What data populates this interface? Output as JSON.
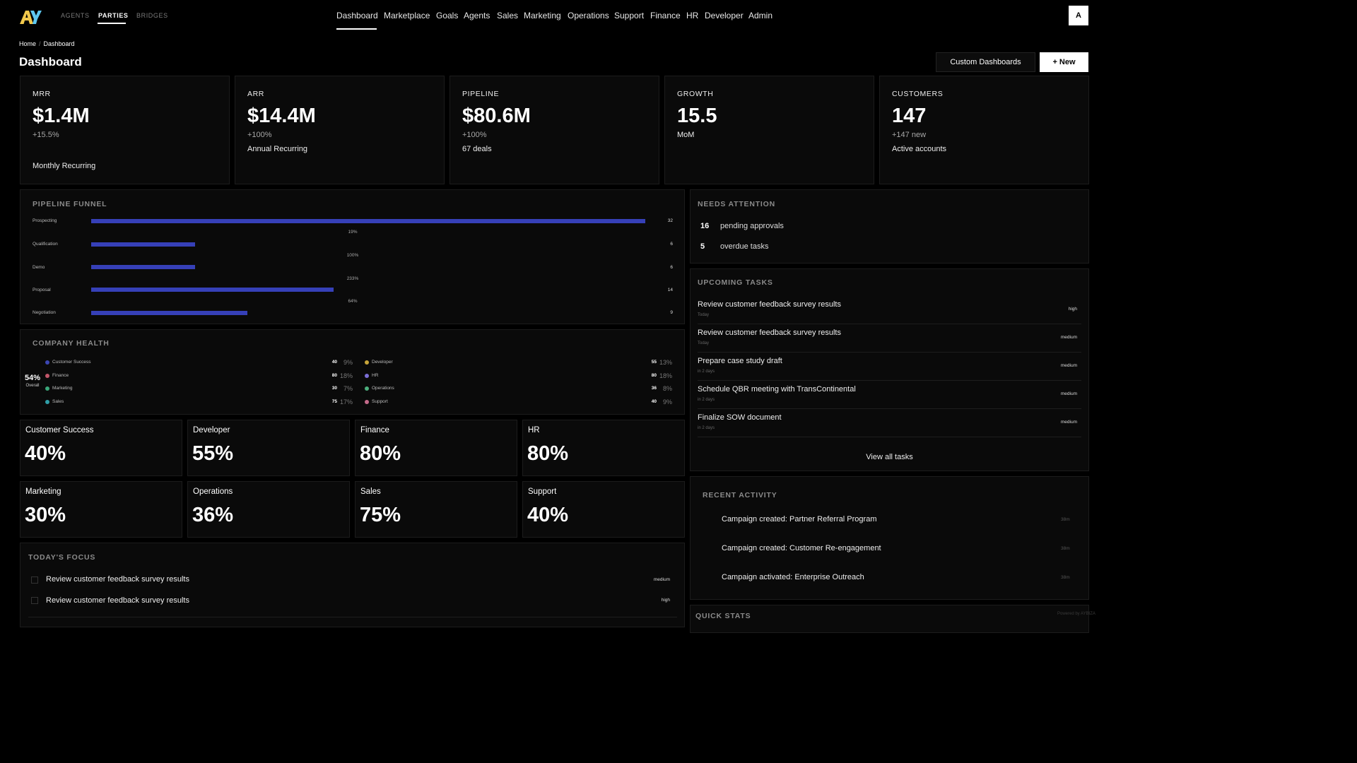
{
  "brand": {
    "logo_text": "AY",
    "accent": "#f2c94c",
    "accent2": "#5ec8f0"
  },
  "party_tabs": {
    "agents": "AGENTS",
    "parties": "PARTIES",
    "bridges": "BRIDGES"
  },
  "nav": [
    "Dashboard",
    "Marketplace",
    "Goals",
    "Agents",
    "Sales",
    "Marketing",
    "Operations",
    "Support",
    "Finance",
    "HR",
    "Developer",
    "Admin"
  ],
  "user": {
    "avatar_initial": "A"
  },
  "breadcrumb": {
    "home": "Home",
    "sep": "/",
    "current": "Dashboard"
  },
  "page": {
    "title": "Dashboard",
    "custom_dashboards": "Custom Dashboards",
    "new_button": "+ New"
  },
  "kpis": [
    {
      "label": "MRR",
      "value": "$1.4M",
      "change": "+15.5%",
      "desc": "Monthly Recurring"
    },
    {
      "label": "ARR",
      "value": "$14.4M",
      "change": "+100%",
      "desc": "Annual Recurring"
    },
    {
      "label": "PIPELINE",
      "value": "$80.6M",
      "change": "+100%",
      "desc": "67 deals"
    },
    {
      "label": "GROWTH",
      "value": "15.5",
      "change": "MoM",
      "desc": ""
    },
    {
      "label": "CUSTOMERS",
      "value": "147",
      "change": "+147 new",
      "desc": "Active accounts"
    }
  ],
  "funnel": {
    "title": "PIPELINE FUNNEL",
    "bar_color": "#3640b8",
    "max": 32,
    "stages": [
      {
        "label": "Prospecting",
        "count": "32",
        "value": 32
      },
      {
        "label": "Qualification",
        "count": "6",
        "value": 6
      },
      {
        "label": "Demo",
        "count": "6",
        "value": 6
      },
      {
        "label": "Proposal",
        "count": "14",
        "value": 14
      },
      {
        "label": "Negotiation",
        "count": "9",
        "value": 9
      }
    ],
    "conversions": [
      "19%",
      "100%",
      "233%",
      "64%"
    ]
  },
  "health": {
    "title": "COMPANY HEALTH",
    "overall": "54%",
    "overall_label": "Overall",
    "left": [
      {
        "name": "Customer Success",
        "value": "40",
        "pct": "9%",
        "color": "#3b46b3"
      },
      {
        "name": "Finance",
        "value": "80",
        "pct": "18%",
        "color": "#c2566a"
      },
      {
        "name": "Marketing",
        "value": "30",
        "pct": "7%",
        "color": "#3aa77a"
      },
      {
        "name": "Sales",
        "value": "75",
        "pct": "17%",
        "color": "#2f9fa8"
      }
    ],
    "right": [
      {
        "name": "Developer",
        "value": "55",
        "pct": "13%",
        "color": "#c7a53a"
      },
      {
        "name": "HR",
        "value": "80",
        "pct": "18%",
        "color": "#7b6fd6"
      },
      {
        "name": "Operations",
        "value": "36",
        "pct": "8%",
        "color": "#4caf7d"
      },
      {
        "name": "Support",
        "value": "40",
        "pct": "9%",
        "color": "#c46a8a"
      }
    ]
  },
  "departments": [
    {
      "name": "Customer Success",
      "value": "40%"
    },
    {
      "name": "Developer",
      "value": "55%"
    },
    {
      "name": "Finance",
      "value": "80%"
    },
    {
      "name": "HR",
      "value": "80%"
    },
    {
      "name": "Marketing",
      "value": "30%"
    },
    {
      "name": "Operations",
      "value": "36%"
    },
    {
      "name": "Sales",
      "value": "75%"
    },
    {
      "name": "Support",
      "value": "40%"
    }
  ],
  "focus": {
    "title": "TODAY'S FOCUS",
    "items": [
      {
        "text": "Review customer feedback survey results",
        "priority": "medium"
      },
      {
        "text": "Review customer feedback survey results",
        "priority": "high"
      }
    ]
  },
  "attention": {
    "title": "NEEDS ATTENTION",
    "items": [
      {
        "count": "16",
        "text": "pending approvals"
      },
      {
        "count": "5",
        "text": "overdue tasks"
      }
    ]
  },
  "tasks": {
    "title": "UPCOMING TASKS",
    "items": [
      {
        "title": "Review customer feedback survey results",
        "due": "Today",
        "priority": "high"
      },
      {
        "title": "Review customer feedback survey results",
        "due": "Today",
        "priority": "medium"
      },
      {
        "title": "Prepare case study draft",
        "due": "in 2 days",
        "priority": "medium"
      },
      {
        "title": "Schedule QBR meeting with TransContinental",
        "due": "in 2 days",
        "priority": "medium"
      },
      {
        "title": "Finalize SOW document",
        "due": "in 2 days",
        "priority": "medium"
      }
    ],
    "view_all": "View all tasks"
  },
  "activity": {
    "title": "RECENT ACTIVITY",
    "items": [
      {
        "text": "Campaign created: Partner Referral Program",
        "time": "38m"
      },
      {
        "text": "Campaign created: Customer Re-engagement",
        "time": "38m"
      },
      {
        "text": "Campaign activated: Enterprise Outreach",
        "time": "38m"
      }
    ]
  },
  "quick_stats": {
    "title": "QUICK STATS"
  },
  "footer": {
    "powered": "Powered by AYBIZA"
  }
}
